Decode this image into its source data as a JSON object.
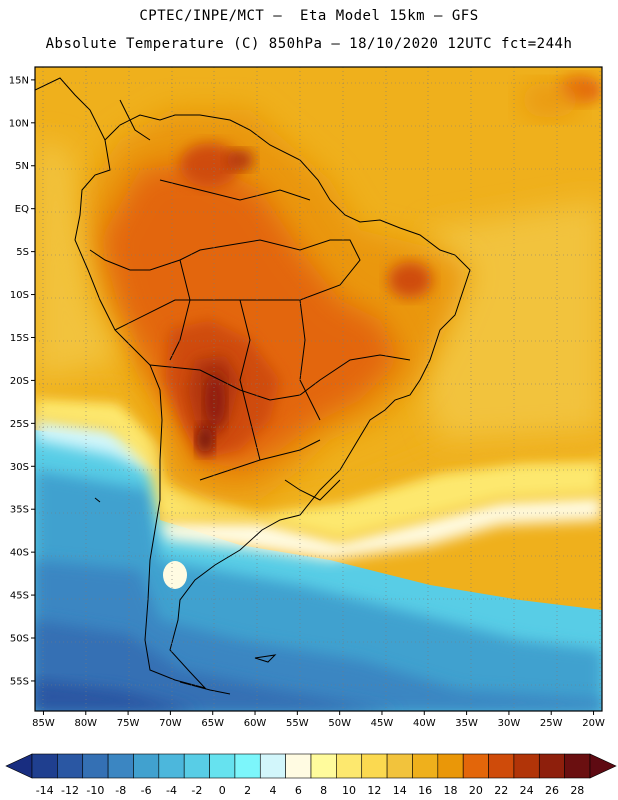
{
  "header": {
    "line1": "CPTEC/INPE/MCT –  Eta Model 15km – GFS",
    "line2": "Absolute Temperature (C) 850hPa – 18/10/2020 12UTC fct=244h"
  },
  "map": {
    "lon_range": [
      -86,
      -19
    ],
    "lat_range": [
      -58.5,
      16.5
    ],
    "lon_ticks": [
      "85W",
      "80W",
      "75W",
      "70W",
      "65W",
      "60W",
      "55W",
      "50W",
      "45W",
      "40W",
      "35W",
      "30W",
      "25W",
      "20W"
    ],
    "lat_ticks": [
      "15N",
      "10N",
      "5N",
      "EQ",
      "5S",
      "10S",
      "15S",
      "20S",
      "25S",
      "30S",
      "35S",
      "40S",
      "45S",
      "50S",
      "55S"
    ],
    "grid": "dotted"
  },
  "colorbar": {
    "levels": [
      "-14",
      "-12",
      "-10",
      "-8",
      "-6",
      "-4",
      "-2",
      "0",
      "2",
      "4",
      "6",
      "8",
      "10",
      "12",
      "14",
      "16",
      "18",
      "20",
      "22",
      "24",
      "26",
      "28"
    ],
    "colors": [
      "#1f3f8f",
      "#2a57a3",
      "#3470b4",
      "#3b86c2",
      "#41a1cf",
      "#4cb7dc",
      "#58cde6",
      "#66e2ef",
      "#7cf6fb",
      "#d2f6fb",
      "#fffbe2",
      "#fffb9c",
      "#fde86e",
      "#fbd950",
      "#f2c33c",
      "#efb01c",
      "#ea9708",
      "#e3660a",
      "#cf4b0a",
      "#b13408",
      "#8e1f0c",
      "#6a0f10"
    ],
    "under_color": "#182d80",
    "over_color": "#5e0a12"
  }
}
